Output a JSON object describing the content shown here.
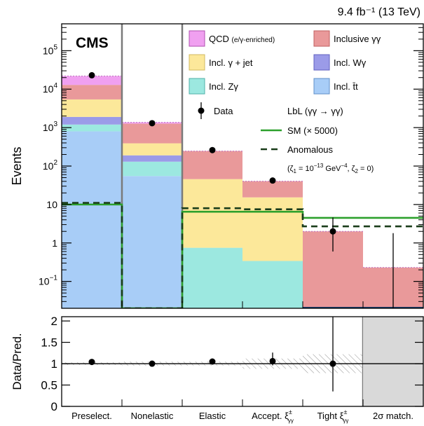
{
  "chart_data": [
    {
      "type": "bar",
      "subtype": "stacked-histogram",
      "ylabel": "Events",
      "yscale": "log",
      "ylim": [
        0.02,
        500000
      ],
      "lumi_label": "9.4 fb⁻¹ (13 TeV)",
      "cms_label": "CMS",
      "categories": [
        "Preselect.",
        "Nonelastic",
        "Elastic",
        "Accept. ξ±γγ",
        "Tight ξ±γγ",
        "2σ match."
      ],
      "category_parts": [
        {
          "main": "Preselect.",
          "sup": "",
          "sub": ""
        },
        {
          "main": "Nonelastic",
          "sup": "",
          "sub": ""
        },
        {
          "main": "Elastic",
          "sup": "",
          "sub": ""
        },
        {
          "main": "Accept. ξ",
          "sup": "±",
          "sub": "γγ"
        },
        {
          "main": "Tight ξ",
          "sup": "±",
          "sub": "γγ"
        },
        {
          "main": "2σ match.",
          "sup": "",
          "sub": ""
        }
      ],
      "yticks": [
        {
          "v": 100000,
          "base": "10",
          "exp": "5"
        },
        {
          "v": 10000,
          "base": "10",
          "exp": "4"
        },
        {
          "v": 1000,
          "base": "10",
          "exp": "3"
        },
        {
          "v": 100,
          "base": "10",
          "exp": "2"
        },
        {
          "v": 10,
          "base": "10",
          "exp": ""
        },
        {
          "v": 1,
          "base": "1",
          "exp": ""
        },
        {
          "v": 0.1,
          "base": "10",
          "exp": "−1"
        }
      ],
      "series": [
        {
          "name": "Incl. t̄t",
          "color": "#a8cdf7",
          "values": [
            800,
            55,
            0,
            0,
            0,
            0
          ]
        },
        {
          "name": "Incl. Zγ",
          "color": "#9ce8e0",
          "values": [
            400,
            75,
            0.75,
            0.34,
            0,
            0
          ]
        },
        {
          "name": "Incl. Wγ",
          "color": "#9b9be8",
          "values": [
            700,
            60,
            0,
            0,
            0,
            0
          ]
        },
        {
          "name": "Incl. γ + jet",
          "color": "#fce89a",
          "values": [
            3500,
            200,
            45,
            15,
            0,
            0
          ]
        },
        {
          "name": "Inclusive γγ",
          "color": "#e9999a",
          "values": [
            7500,
            880,
            200,
            25,
            2,
            0.23
          ]
        },
        {
          "name": "QCD (e/γ-enriched)",
          "color": "#f0a0f0",
          "values": [
            9000,
            100,
            0,
            0,
            0,
            0
          ]
        }
      ],
      "data": {
        "name": "Data",
        "values": [
          23000,
          1300,
          260,
          42,
          2,
          null
        ],
        "err_low": [
          0,
          0,
          0,
          0,
          1.4,
          0
        ],
        "err_high": [
          0,
          0,
          0,
          0,
          2.6,
          0
        ]
      },
      "lines": [
        {
          "name": "SM (× 5000)",
          "color": "#2ca02c",
          "dash": "",
          "values": [
            10,
            0.02,
            6.5,
            6.5,
            4.5,
            4.5
          ]
        },
        {
          "name": "Anomalous",
          "color": "#1a3d1a",
          "dash": "9,6",
          "values": [
            11,
            0.02,
            8,
            7.5,
            2.7,
            2.7
          ]
        }
      ],
      "legend": {
        "placement": "top-right",
        "qcd_main": "QCD ",
        "qcd_small": "(e/γ-enriched)",
        "lbl_title": "LbL (γγ → γγ)",
        "zeta_1": "(ζ",
        "zeta_2": "1",
        "zeta_3": " = 10",
        "zeta_4": "−13",
        "zeta_5": " GeV",
        "zeta_6": "−4",
        "zeta_7": ", ζ",
        "zeta_8": "2",
        "zeta_9": " = 0)"
      }
    },
    {
      "type": "scatter",
      "ylabel": "Data/Pred.",
      "ylim": [
        0,
        2.1
      ],
      "yticks": [
        "0",
        "0.5",
        "1",
        "1.5",
        "2"
      ],
      "yticks_v": [
        0,
        0.5,
        1,
        1.5,
        2
      ],
      "reference": 1,
      "x": [
        "Preselect.",
        "Nonelastic",
        "Elastic",
        "Accept. ξ±γγ",
        "Tight ξ±γγ"
      ],
      "values": [
        1.04,
        1.0,
        1.05,
        1.06,
        1.0
      ],
      "err_low": [
        0.02,
        0.02,
        0.02,
        0.1,
        0.65
      ],
      "err_high": [
        0.02,
        0.02,
        0.02,
        0.2,
        1.4
      ],
      "unc_band": [
        0.03,
        0.05,
        0.05,
        0.12,
        0.22
      ],
      "excluded_bin": "2σ match."
    }
  ]
}
